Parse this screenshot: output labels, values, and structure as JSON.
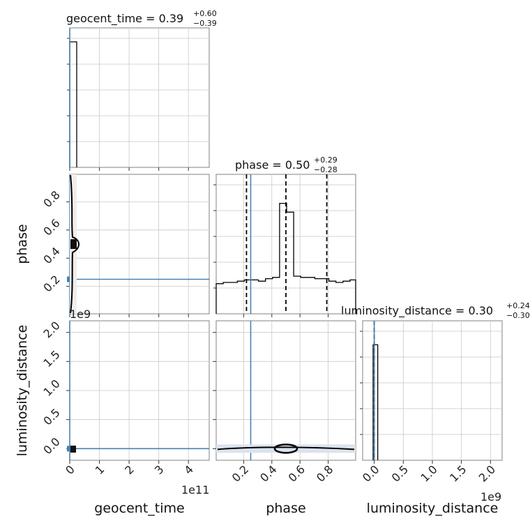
{
  "chart_data": {
    "type": "corner",
    "parameters": [
      "geocent_time",
      "phase",
      "luminosity_distance"
    ],
    "titles": [
      {
        "param": "geocent_time",
        "prefix": "geocent_time = ",
        "value": "0.39",
        "upper": "+0.60",
        "lower": "−0.39"
      },
      {
        "param": "phase",
        "prefix": "phase = ",
        "value": "0.50",
        "upper": "+0.29",
        "lower": "−0.28"
      },
      {
        "param": "luminosity_distance",
        "prefix": "luminosity_distance = ",
        "value": "0.30",
        "upper": "+0.24",
        "lower": "−0.30"
      }
    ],
    "axis_labels": {
      "geocent_time": "geocent_time",
      "phase": "phase",
      "luminosity_distance": "luminosity_distance"
    },
    "offset_labels": {
      "geocent_time": "1e11",
      "luminosity_distance": "1e9"
    },
    "ranges": {
      "geocent_time": [
        0,
        470000000000.0
      ],
      "phase": [
        0.005,
        0.995
      ],
      "luminosity_distance": [
        -200000000.0,
        2200000000.0
      ]
    },
    "ticks": {
      "geocent_time": {
        "values": [
          0,
          100000000000.0,
          200000000000.0,
          300000000000.0,
          400000000000.0
        ],
        "labels": [
          "0",
          "1",
          "2",
          "3",
          "4"
        ]
      },
      "phase": {
        "values": [
          0.2,
          0.4,
          0.6,
          0.8
        ],
        "labels": [
          "0.2",
          "0.4",
          "0.6",
          "0.8"
        ]
      },
      "luminosity_distance": {
        "values": [
          0,
          500000000.0,
          1000000000.0,
          1500000000.0,
          2000000000.0
        ],
        "labels": [
          "0.0",
          "0.5",
          "1.0",
          "1.5",
          "2.0"
        ]
      }
    },
    "truths": {
      "geocent_time": 0,
      "phase": 0.25,
      "luminosity_distance": 0
    },
    "quantiles": {
      "phase": [
        0.22,
        0.5,
        0.79
      ],
      "luminosity_distance": [
        0
      ]
    },
    "histograms": {
      "geocent_time": {
        "edges": [
          0,
          23500000000.0
        ],
        "counts": [
          1.0
        ]
      },
      "phase": {
        "edges": [
          0.005,
          0.055,
          0.105,
          0.155,
          0.205,
          0.255,
          0.305,
          0.355,
          0.405,
          0.455,
          0.505,
          0.555,
          0.605,
          0.655,
          0.705,
          0.755,
          0.805,
          0.855,
          0.905,
          0.955,
          0.995
        ],
        "counts": [
          0.24,
          0.25,
          0.25,
          0.26,
          0.27,
          0.27,
          0.26,
          0.28,
          0.29,
          0.88,
          0.81,
          0.3,
          0.29,
          0.29,
          0.28,
          0.28,
          0.26,
          0.25,
          0.26,
          0.27
        ]
      },
      "luminosity_distance": {
        "edges": [
          -20000000.0,
          60000000.0
        ],
        "counts": [
          0.92
        ]
      }
    },
    "grid": true
  }
}
